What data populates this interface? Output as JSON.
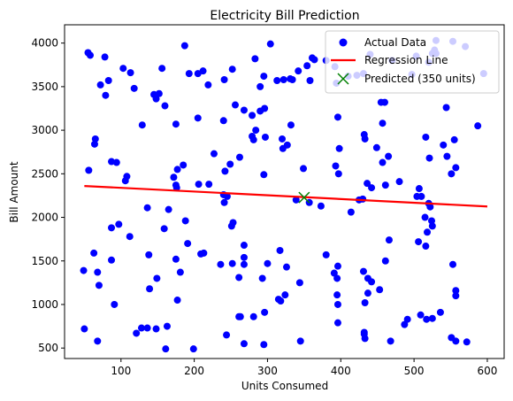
{
  "chart_data": {
    "type": "scatter",
    "title": "Electricity Bill Prediction",
    "xlabel": "Units Consumed",
    "ylabel": "Bill Amount",
    "xlim": [
      23,
      623
    ],
    "ylim": [
      380,
      4210
    ],
    "xticks": [
      100,
      200,
      300,
      400,
      500,
      600
    ],
    "yticks": [
      500,
      1000,
      1500,
      2000,
      2500,
      3000,
      3500,
      4000
    ],
    "grid": false,
    "legend_position": "top-right",
    "colors": {
      "actual": "#0000ff",
      "regression": "#ff0000",
      "predicted": "#008000",
      "frame": "#000000"
    },
    "series": [
      {
        "name": "Actual Data",
        "kind": "scatter",
        "points": [
          [
            55,
            3890
          ],
          [
            58,
            3860
          ],
          [
            78,
            3840
          ],
          [
            83,
            3570
          ],
          [
            72,
            3520
          ],
          [
            79,
            3400
          ],
          [
            103,
            3710
          ],
          [
            113,
            3660
          ],
          [
            118,
            3480
          ],
          [
            145,
            3410
          ],
          [
            148,
            3360
          ],
          [
            152,
            3420
          ],
          [
            156,
            3710
          ],
          [
            160,
            3280
          ],
          [
            187,
            3970
          ],
          [
            193,
            3650
          ],
          [
            205,
            3650
          ],
          [
            212,
            3680
          ],
          [
            205,
            3140
          ],
          [
            175,
            3070
          ],
          [
            129,
            3060
          ],
          [
            219,
            3520
          ],
          [
            241,
            3580
          ],
          [
            240,
            3110
          ],
          [
            252,
            3700
          ],
          [
            256,
            3290
          ],
          [
            268,
            3230
          ],
          [
            283,
            3820
          ],
          [
            290,
            3500
          ],
          [
            295,
            3620
          ],
          [
            279,
            3170
          ],
          [
            290,
            3220
          ],
          [
            296,
            3250
          ],
          [
            279,
            2930
          ],
          [
            284,
            3000
          ],
          [
            281,
            2890
          ],
          [
            304,
            3990
          ],
          [
            313,
            3570
          ],
          [
            331,
            3590
          ],
          [
            322,
            3580
          ],
          [
            334,
            3580
          ],
          [
            342,
            3680
          ],
          [
            354,
            3740
          ],
          [
            358,
            3570
          ],
          [
            361,
            3830
          ],
          [
            364,
            3810
          ],
          [
            332,
            3060
          ],
          [
            320,
            2900
          ],
          [
            327,
            2830
          ],
          [
            321,
            2790
          ],
          [
            295,
            2490
          ],
          [
            297,
            2920
          ],
          [
            339,
            2200
          ],
          [
            349,
            2560
          ],
          [
            357,
            2170
          ],
          [
            380,
            3800
          ],
          [
            392,
            3730
          ],
          [
            394,
            3540
          ],
          [
            396,
            3150
          ],
          [
            410,
            3620
          ],
          [
            422,
            3630
          ],
          [
            431,
            3650
          ],
          [
            440,
            3870
          ],
          [
            455,
            3320
          ],
          [
            460,
            3320
          ],
          [
            457,
            3080
          ],
          [
            470,
            3800
          ],
          [
            497,
            3640
          ],
          [
            503,
            3850
          ],
          [
            520,
            3780
          ],
          [
            525,
            3880
          ],
          [
            528,
            3920
          ],
          [
            530,
            3880
          ],
          [
            530,
            4030
          ],
          [
            553,
            4020
          ],
          [
            570,
            3960
          ],
          [
            595,
            3650
          ],
          [
            587,
            3050
          ],
          [
            555,
            2890
          ],
          [
            544,
            3260
          ],
          [
            540,
            2830
          ],
          [
            545,
            2700
          ],
          [
            516,
            2920
          ],
          [
            521,
            2680
          ],
          [
            557,
            2570
          ],
          [
            551,
            2500
          ],
          [
            507,
            2330
          ],
          [
            504,
            2240
          ],
          [
            510,
            2240
          ],
          [
            520,
            2160
          ],
          [
            522,
            2120
          ],
          [
            515,
            2000
          ],
          [
            524,
            1960
          ],
          [
            525,
            1900
          ],
          [
            518,
            1830
          ],
          [
            516,
            1670
          ],
          [
            506,
            1720
          ],
          [
            553,
            1460
          ],
          [
            557,
            1160
          ],
          [
            557,
            1100
          ],
          [
            536,
            910
          ],
          [
            525,
            840
          ],
          [
            517,
            830
          ],
          [
            509,
            880
          ],
          [
            551,
            620
          ],
          [
            557,
            580
          ],
          [
            572,
            570
          ],
          [
            487,
            770
          ],
          [
            491,
            830
          ],
          [
            480,
            2410
          ],
          [
            465,
            2700
          ],
          [
            457,
            2630
          ],
          [
            449,
            2800
          ],
          [
            433,
            2900
          ],
          [
            432,
            2950
          ],
          [
            436,
            2390
          ],
          [
            442,
            2340
          ],
          [
            430,
            2210
          ],
          [
            425,
            2200
          ],
          [
            414,
            2060
          ],
          [
            397,
            2500
          ],
          [
            393,
            2590
          ],
          [
            398,
            2790
          ],
          [
            373,
            2130
          ],
          [
            380,
            1570
          ],
          [
            391,
            1360
          ],
          [
            396,
            1440
          ],
          [
            395,
            1300
          ],
          [
            395,
            1110
          ],
          [
            396,
            1000
          ],
          [
            396,
            790
          ],
          [
            431,
            1380
          ],
          [
            437,
            1300
          ],
          [
            442,
            1260
          ],
          [
            437,
            1130
          ],
          [
            453,
            1170
          ],
          [
            461,
            1500
          ],
          [
            466,
            1740
          ],
          [
            461,
            2370
          ],
          [
            433,
            1020
          ],
          [
            432,
            680
          ],
          [
            432,
            660
          ],
          [
            433,
            610
          ],
          [
            468,
            580
          ],
          [
            344,
            1250
          ],
          [
            345,
            580
          ],
          [
            324,
            1110
          ],
          [
            318,
            1040
          ],
          [
            315,
            1060
          ],
          [
            326,
            1430
          ],
          [
            317,
            1620
          ],
          [
            293,
            1300
          ],
          [
            300,
            1470
          ],
          [
            296,
            910
          ],
          [
            295,
            540
          ],
          [
            281,
            860
          ],
          [
            268,
            1540
          ],
          [
            268,
            1680
          ],
          [
            268,
            1460
          ],
          [
            261,
            1310
          ],
          [
            253,
            1940
          ],
          [
            251,
            1900
          ],
          [
            241,
            2170
          ],
          [
            240,
            2260
          ],
          [
            245,
            2240
          ],
          [
            242,
            2530
          ],
          [
            249,
            2610
          ],
          [
            262,
            2690
          ],
          [
            252,
            1470
          ],
          [
            236,
            1460
          ],
          [
            244,
            650
          ],
          [
            261,
            860
          ],
          [
            263,
            860
          ],
          [
            268,
            550
          ],
          [
            209,
            1580
          ],
          [
            213,
            1590
          ],
          [
            191,
            1700
          ],
          [
            188,
            1960
          ],
          [
            181,
            1370
          ],
          [
            175,
            1520
          ],
          [
            172,
            2460
          ],
          [
            177,
            2550
          ],
          [
            185,
            2600
          ],
          [
            175,
            2370
          ],
          [
            176,
            2340
          ],
          [
            177,
            1050
          ],
          [
            149,
            1300
          ],
          [
            138,
            1570
          ],
          [
            139,
            1180
          ],
          [
            136,
            730
          ],
          [
            128,
            730
          ],
          [
            121,
            670
          ],
          [
            148,
            720
          ],
          [
            161,
            490
          ],
          [
            163,
            750
          ],
          [
            159,
            1870
          ],
          [
            165,
            2090
          ],
          [
            136,
            2110
          ],
          [
            108,
            2470
          ],
          [
            106,
            2420
          ],
          [
            94,
            2630
          ],
          [
            87,
            2640
          ],
          [
            64,
            2840
          ],
          [
            65,
            2900
          ],
          [
            56,
            2540
          ],
          [
            49,
            1390
          ],
          [
            50,
            720
          ],
          [
            63,
            1590
          ],
          [
            68,
            1370
          ],
          [
            70,
            1220
          ],
          [
            68,
            580
          ],
          [
            87,
            1510
          ],
          [
            87,
            1880
          ],
          [
            97,
            1920
          ],
          [
            112,
            1780
          ],
          [
            91,
            1000
          ],
          [
            199,
            490
          ],
          [
            227,
            2730
          ],
          [
            220,
            2380
          ],
          [
            206,
            2380
          ]
        ]
      },
      {
        "name": "Regression Line",
        "kind": "line",
        "x": [
          50,
          600
        ],
        "y": [
          2360,
          2125
        ]
      },
      {
        "name": "Predicted (350 units)",
        "kind": "marker",
        "x": [
          350
        ],
        "y": [
          2228
        ]
      }
    ]
  }
}
